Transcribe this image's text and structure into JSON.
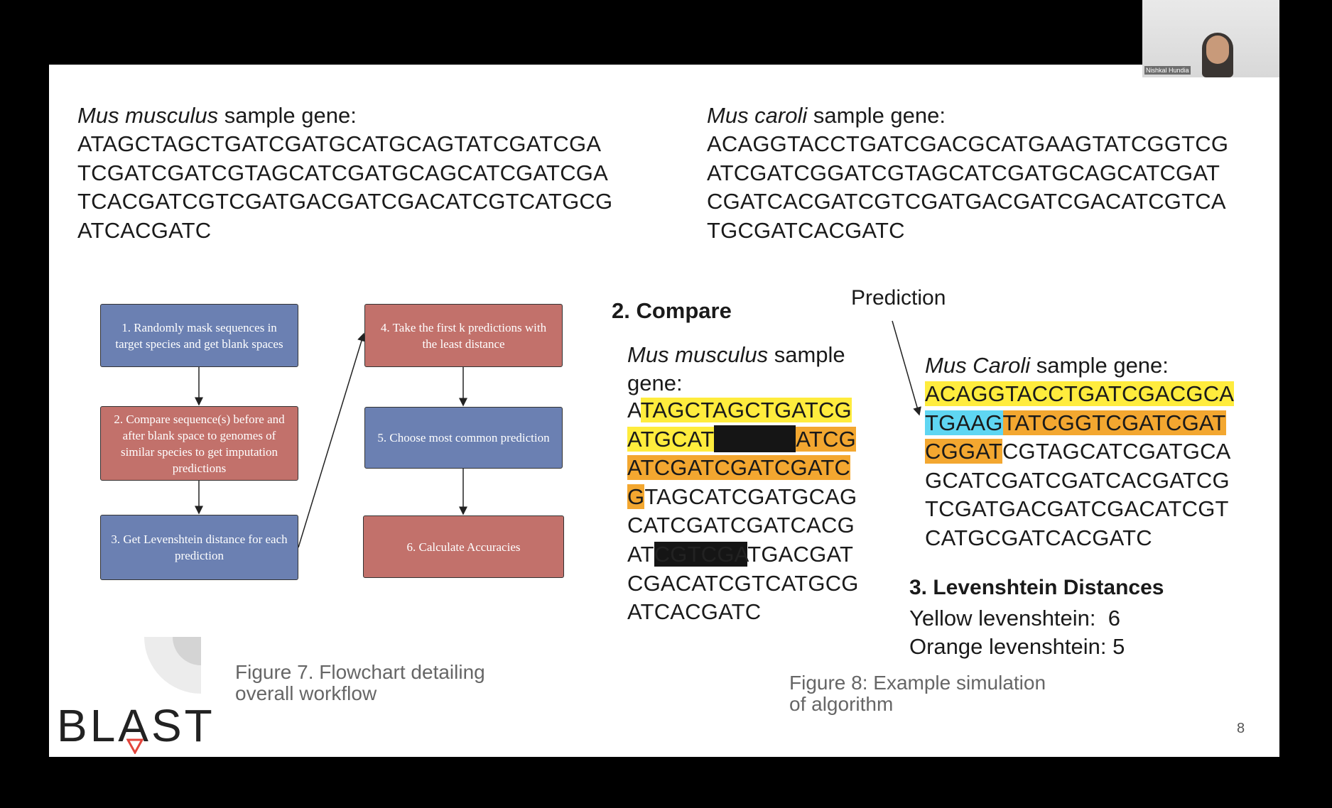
{
  "video": {
    "participant_name": "Nishkal Hundia"
  },
  "slide": {
    "top_left": {
      "species": "Mus musculus",
      "heading_rest": "sample gene:",
      "sequence": [
        "ATAGCTAGCTGATCGATGCATGCAGTATCGATCGA",
        "TCGATCGATCGTAGCATCGATGCAGCATCGATCGA",
        "TCACGATCGTCGATGACGATCGACATCGTCATGCG",
        "ATCACGATC"
      ]
    },
    "top_right": {
      "species": "Mus caroli",
      "heading_rest": "sample gene:",
      "sequence": [
        "ACAGGTACCTGATCGACGCATGAAGTATCGGTCG",
        "ATCGATCGGATCGTAGCATCGATGCAGCATCGAT",
        "CGATCACGATCGTCGATGACGATCGACATCGTCA",
        "TGCGATCACGATC"
      ]
    },
    "flowchart": {
      "steps": [
        "1. Randomly mask sequences in target species and get blank spaces",
        "2. Compare sequence(s) before and after blank space to genomes of similar species to get imputation predictions",
        "3. Get Levenshtein distance for each prediction",
        "4. Take the first k predictions with the least distance",
        "5. Choose most common prediction",
        "6. Calculate Accuracies"
      ]
    },
    "figure7_caption": [
      "Figure 7. Flowchart detailing",
      "overall workflow"
    ],
    "compare": {
      "title": "2. Compare",
      "prediction_label": "Prediction",
      "left": {
        "species": "Mus musculus",
        "heading_rest": "sample gene:",
        "lines": [
          [
            "A",
            "TAGCTAGCTGATCG"
          ],
          [
            "ATGCAT",
            "ATCG"
          ],
          [
            "ATCGATCGATCGATC"
          ],
          [
            "G",
            "TAGCATCGATGCAG"
          ],
          [
            "CATCGATCGATCACG"
          ],
          [
            "AT",
            "CGTCGA",
            "TGACGAT"
          ],
          [
            "CGACATCGTCATGCG"
          ],
          [
            "ATCACGATC"
          ]
        ]
      },
      "right": {
        "species": "Mus Caroli",
        "heading_rest": "sample gene:",
        "lines": [
          [
            "ACAGGTACCTGATCGACGCA"
          ],
          [
            "TGAAG",
            "TATCGGTCGATCGAT"
          ],
          [
            "CGGAT",
            "CGTAGCATCGATGCA"
          ],
          [
            "GCATCGATCGATCACGATCG"
          ],
          [
            "TCGATGACGATCGACATCGT"
          ],
          [
            "CATGCGATCACGATC"
          ]
        ]
      }
    },
    "levenshtein": {
      "title": "3. Levenshtein Distances",
      "rows": [
        {
          "label": "Yellow levenshtein:",
          "value": 6
        },
        {
          "label": "Orange levenshtein:",
          "value": 5
        }
      ]
    },
    "figure8_caption": [
      "Figure 8: Example simulation",
      "of algorithm"
    ],
    "page_number": 8,
    "logo": "BLAST"
  }
}
